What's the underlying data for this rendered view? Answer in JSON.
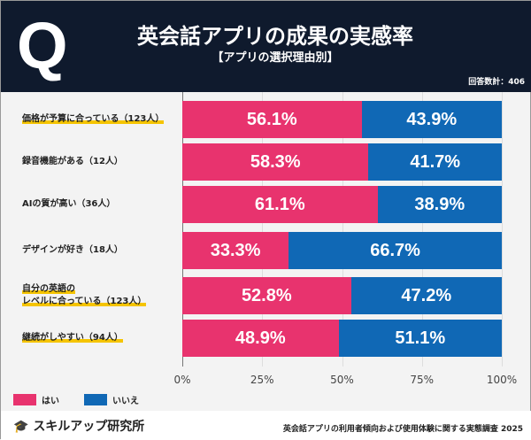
{
  "header": {
    "icon": "Q",
    "title": "英会話アプリの成果の実感率",
    "subtitle": "【アプリの選択理由別】",
    "count": "回答数計：406"
  },
  "footer": {
    "brand": "スキルアップ研究所",
    "source": "英会話アプリの利用者傾向および使用体験に関する実態調査 2025"
  },
  "chart_data": {
    "type": "bar",
    "orientation": "horizontal",
    "stacked": true,
    "categories": [
      "価格が予算に合っている（123人）",
      "録音機能がある（12人）",
      "AIの質が高い（36人）",
      "デザインが好き（18人）",
      "自分の英語の\nレベルに合っている（123人）",
      "継続がしやすい（94人）"
    ],
    "highlighted": [
      true,
      false,
      false,
      false,
      true,
      true
    ],
    "series": [
      {
        "name": "はい",
        "color": "#e8336e",
        "values": [
          56.1,
          58.3,
          61.1,
          33.3,
          52.8,
          48.9
        ]
      },
      {
        "name": "いいえ",
        "color": "#1068b5",
        "values": [
          43.9,
          41.7,
          38.9,
          66.7,
          47.2,
          51.1
        ]
      }
    ],
    "xticks": [
      "0%",
      "25%",
      "50%",
      "75%",
      "100%"
    ],
    "xlim": [
      0,
      100
    ],
    "legend": "bottom-left",
    "highlight_color": "#f5c400"
  }
}
